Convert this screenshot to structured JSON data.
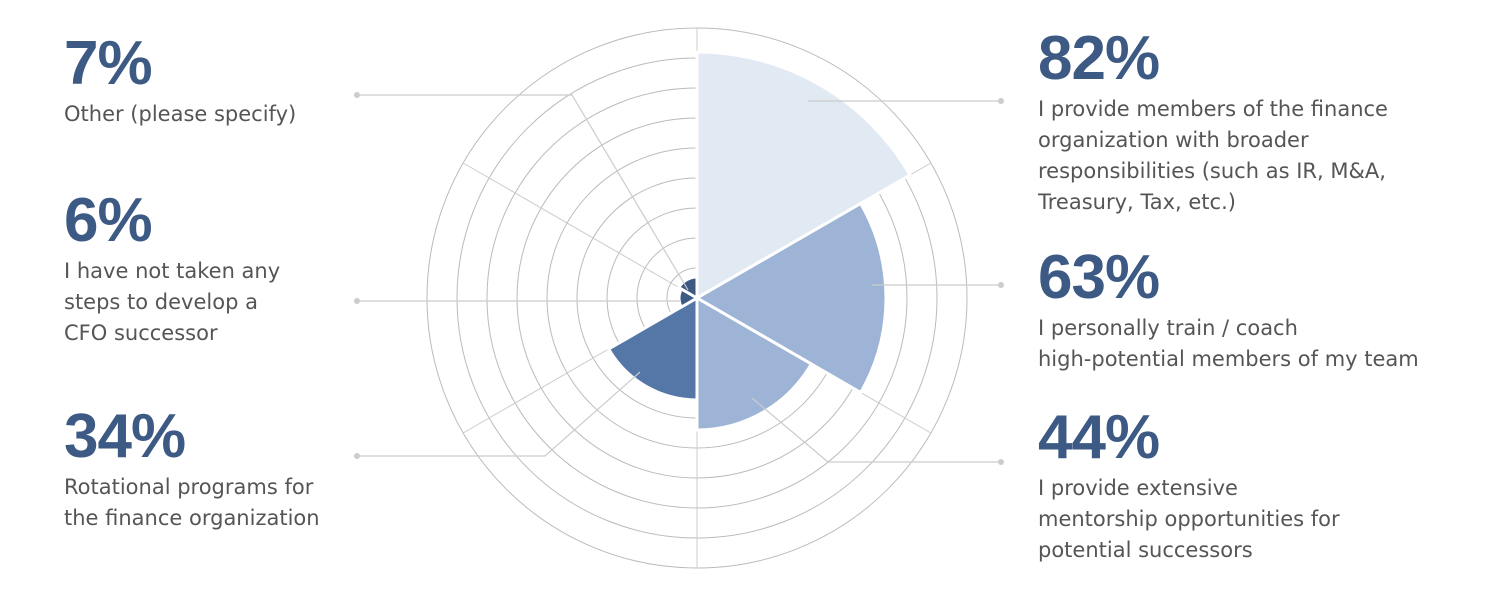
{
  "chart_data": {
    "type": "polar-area",
    "categories": [
      "I provide members of the finance\norganization with broader\nresponsibilities (such as IR, M&A,\nTreasury, Tax, etc.)",
      "I personally train / coach\nhigh-potential members of my team",
      "I provide extensive\nmentorship opportunities for\npotential successors",
      "Rotational programs for\nthe finance organization",
      "I have not taken any\nsteps to develop a\nCFO successor",
      "Other (please specify)"
    ],
    "values": [
      82,
      63,
      44,
      34,
      6,
      7
    ],
    "value_labels": [
      "82%",
      "63%",
      "44%",
      "34%",
      "6%",
      "7%"
    ],
    "colors": [
      "#e1e9f3",
      "#9db4d6",
      "#9db4d6",
      "#5577a8",
      "#3d5a85",
      "#3d5a85"
    ],
    "rlim": [
      0,
      90
    ],
    "rticks": [
      10,
      20,
      30,
      40,
      50,
      60,
      70,
      80,
      90
    ],
    "grid": true
  }
}
